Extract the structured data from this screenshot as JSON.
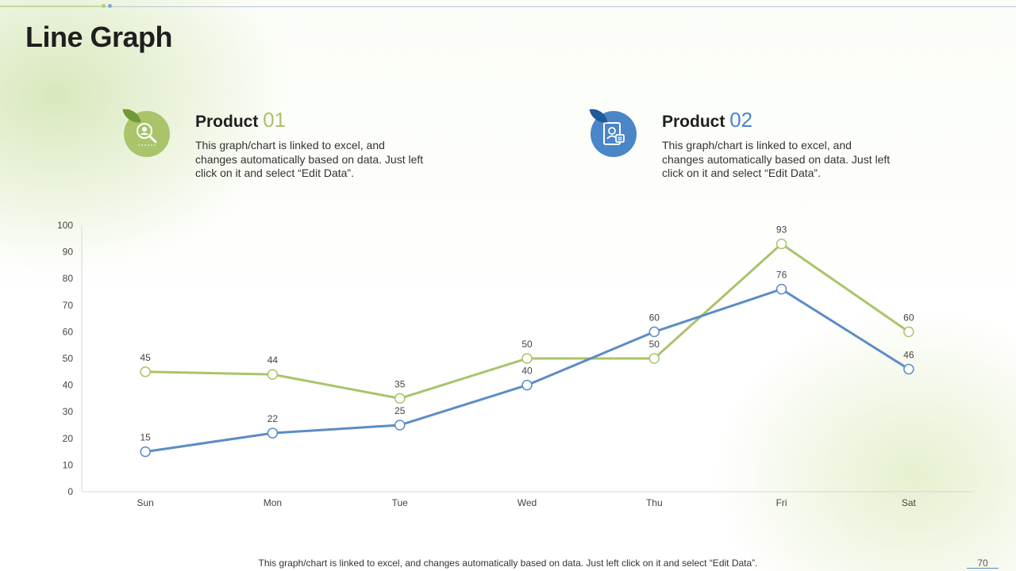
{
  "title": "Line Graph",
  "products": [
    {
      "label": "Product",
      "number": "01",
      "icon": "search-person-icon",
      "color": "#a9c46b",
      "description": "This graph/chart is linked to excel, and changes automatically based on data. Just left click on it and select “Edit Data”."
    },
    {
      "label": "Product",
      "number": "02",
      "icon": "document-profile-icon",
      "color": "#4a86c8",
      "description": "This graph/chart is linked to excel, and changes automatically based on data. Just left click on it and select “Edit Data”."
    }
  ],
  "footer": "This graph/chart is linked to excel,  and changes automatically based on data. Just left click on it and select “Edit Data”.",
  "page_number": "70",
  "chart_data": {
    "type": "line",
    "title": "",
    "xlabel": "",
    "ylabel": "",
    "categories": [
      "Sun",
      "Mon",
      "Tue",
      "Wed",
      "Thu",
      "Fri",
      "Sat"
    ],
    "ylim": [
      0,
      100
    ],
    "yticks": [
      0,
      10,
      20,
      30,
      40,
      50,
      60,
      70,
      80,
      90,
      100
    ],
    "grid": false,
    "series": [
      {
        "name": "Product 01",
        "color": "#a9c46b",
        "values": [
          45,
          44,
          35,
          50,
          50,
          93,
          60
        ]
      },
      {
        "name": "Product 02",
        "color": "#5b8cc6",
        "values": [
          15,
          22,
          25,
          40,
          60,
          76,
          46
        ]
      }
    ]
  }
}
